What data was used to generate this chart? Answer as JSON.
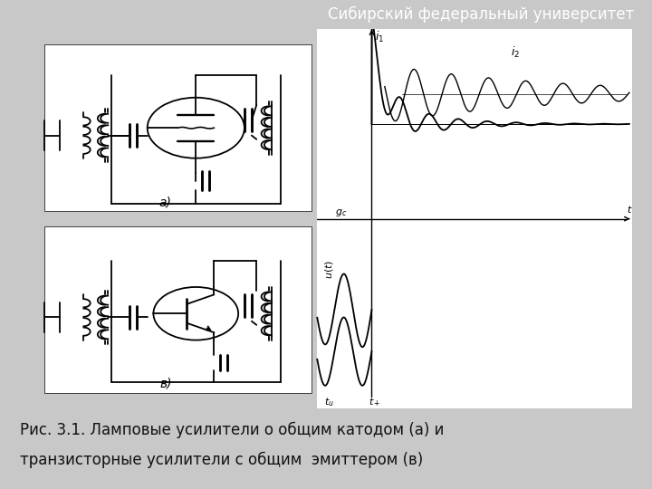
{
  "bg_color": "#c8c8c8",
  "header_color": "#f07818",
  "header_text": "Сибирский федеральный университет",
  "header_text_color": "#ffffff",
  "header_fontsize": 12,
  "caption_line1": "Рис. 3.1. Ламповые усилители о общим катодом (а) и",
  "caption_line2": "транзисторные усилители с общим  эмиттером (в)",
  "caption_fontsize": 12,
  "caption_color": "#111111",
  "white_panel_color": "#f8f8f5",
  "diagram_label_fontsize": 10
}
